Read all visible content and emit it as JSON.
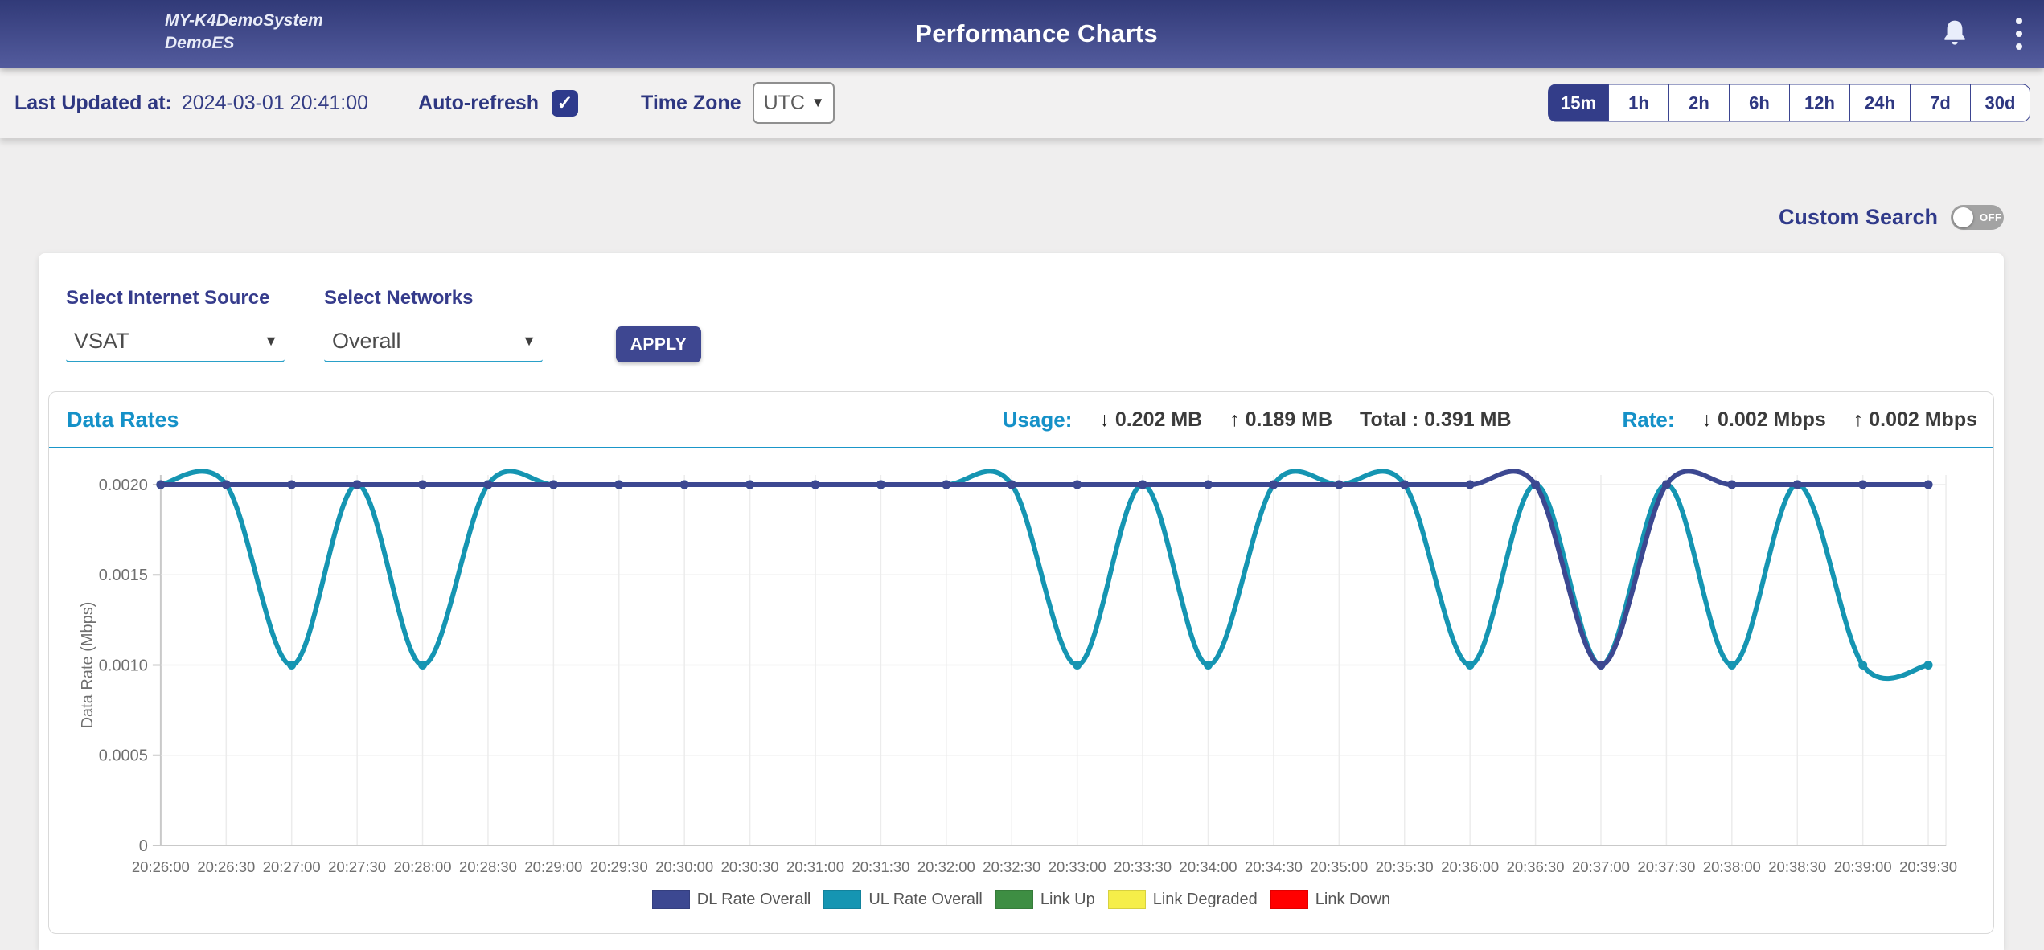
{
  "navbar": {
    "system_name_line1": "MY-K4DemoSystem",
    "system_name_line2": "DemoES",
    "title": "Performance Charts"
  },
  "toolbar": {
    "last_updated_label": "Last Updated at:",
    "last_updated_value": "2024-03-01 20:41:00",
    "auto_refresh_label": "Auto-refresh",
    "auto_refresh_checked": true,
    "check_glyph": "✓",
    "time_zone_label": "Time Zone",
    "time_zone_value": "UTC",
    "dropdown_arrow": "▼",
    "time_ranges": [
      {
        "label": "15m",
        "active": true
      },
      {
        "label": "1h",
        "active": false
      },
      {
        "label": "2h",
        "active": false
      },
      {
        "label": "6h",
        "active": false
      },
      {
        "label": "12h",
        "active": false
      },
      {
        "label": "24h",
        "active": false
      },
      {
        "label": "7d",
        "active": false
      },
      {
        "label": "30d",
        "active": false
      }
    ]
  },
  "custom_search": {
    "label": "Custom Search",
    "state": "OFF"
  },
  "filters": {
    "internet_source_label": "Select Internet Source",
    "internet_source_value": "VSAT",
    "networks_label": "Select Networks",
    "networks_value": "Overall",
    "apply_label": "APPLY",
    "dropdown_arrow": "▼"
  },
  "data_rates_card": {
    "title": "Data Rates",
    "usage_label": "Usage:",
    "down_arrow": "↓",
    "up_arrow": "↑",
    "usage_down": "0.202 MB",
    "usage_up": "0.189 MB",
    "usage_total": "Total : 0.391 MB",
    "rate_label": "Rate:",
    "rate_down": "0.002 Mbps",
    "rate_up": "0.002 Mbps"
  },
  "colors": {
    "accent_navy": "#333d89",
    "accent_blue": "#1591c8",
    "toolbar_bg": "#f2f1f1",
    "page_bg": "#efeeee"
  },
  "chart_data": {
    "type": "line",
    "title": "Data Rates",
    "xlabel": "",
    "ylabel": "Data Rate (Mbps)",
    "ylim": [
      0,
      0.002
    ],
    "yticks": [
      0,
      0.0005,
      0.001,
      0.0015,
      0.002
    ],
    "ytick_labels": [
      "0",
      "0.0005",
      "0.0010",
      "0.0015",
      "0.0020"
    ],
    "grid": true,
    "legend_position": "bottom",
    "marker": "circle",
    "categories": [
      "20:26:00",
      "20:26:30",
      "20:27:00",
      "20:27:30",
      "20:28:00",
      "20:28:30",
      "20:29:00",
      "20:29:30",
      "20:30:00",
      "20:30:30",
      "20:31:00",
      "20:31:30",
      "20:32:00",
      "20:32:30",
      "20:33:00",
      "20:33:30",
      "20:34:00",
      "20:34:30",
      "20:35:00",
      "20:35:30",
      "20:36:00",
      "20:36:30",
      "20:37:00",
      "20:37:30",
      "20:38:00",
      "20:38:30",
      "20:39:00",
      "20:39:30"
    ],
    "series": [
      {
        "name": "DL Rate Overall",
        "color": "#3c4891",
        "values": [
          0.002,
          0.002,
          0.002,
          0.002,
          0.002,
          0.002,
          0.002,
          0.002,
          0.002,
          0.002,
          0.002,
          0.002,
          0.002,
          0.002,
          0.002,
          0.002,
          0.002,
          0.002,
          0.002,
          0.002,
          0.002,
          0.002,
          0.001,
          0.002,
          0.002,
          0.002,
          0.002,
          0.002
        ]
      },
      {
        "name": "UL Rate Overall",
        "color": "#1595b2",
        "values": [
          0.002,
          0.002,
          0.001,
          0.002,
          0.001,
          0.002,
          0.002,
          0.002,
          0.002,
          0.002,
          0.002,
          0.002,
          0.002,
          0.002,
          0.001,
          0.002,
          0.001,
          0.002,
          0.002,
          0.002,
          0.001,
          0.002,
          0.001,
          0.002,
          0.001,
          0.002,
          0.001,
          0.001
        ]
      },
      {
        "name": "Link Up",
        "color": "#3e8e43",
        "values": []
      },
      {
        "name": "Link Degraded",
        "color": "#f5ee49",
        "values": []
      },
      {
        "name": "Link Down",
        "color": "#ff0000",
        "values": []
      }
    ]
  }
}
